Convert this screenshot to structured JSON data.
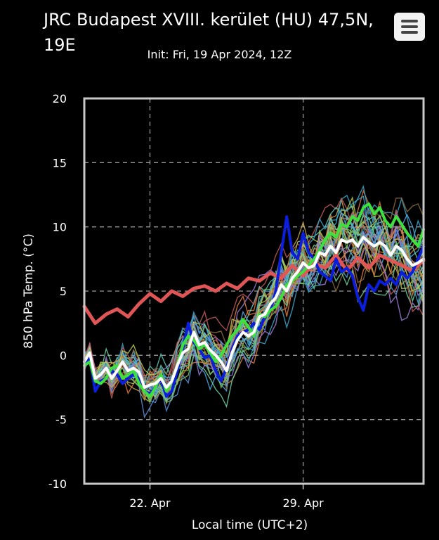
{
  "header": {
    "title": "JRC Budapest XVIII. kerület (HU) 47,5N, 19E",
    "subtitle": "Init: Fri, 19 Apr 2024, 12Z"
  },
  "chart_data": {
    "type": "line",
    "ylabel": "850 hPa Temp. (°C)",
    "xlabel": "Local time (UTC+2)",
    "ylim": [
      -10,
      20
    ],
    "yticks": [
      20,
      15,
      10,
      5,
      0,
      -5,
      -10
    ],
    "xticks": [
      {
        "day": 3,
        "label": "22. Apr"
      },
      {
        "day": 10,
        "label": "29. Apr"
      }
    ],
    "xlim_days": [
      0,
      15.5
    ],
    "grid": true,
    "legend": "none",
    "colors": {
      "background": "#000000",
      "plot_border": "#c8c8c8",
      "grid": "#9a9a9a",
      "mean": "#ffffff",
      "control": "#3ee03e",
      "deterministic": "#0a1edc",
      "climate": "#e05555"
    },
    "series": [
      {
        "role": "ensemble-mean",
        "color": "#ffffff",
        "width": 4,
        "x": [
          0,
          0.25,
          0.5,
          0.75,
          1,
          1.25,
          1.5,
          1.75,
          2,
          2.25,
          2.5,
          2.75,
          3,
          3.25,
          3.5,
          3.75,
          4,
          4.25,
          4.5,
          4.75,
          5,
          5.25,
          5.5,
          5.75,
          6,
          6.25,
          6.5,
          6.75,
          7,
          7.25,
          7.5,
          7.75,
          8,
          8.25,
          8.5,
          8.75,
          9,
          9.25,
          9.5,
          9.75,
          10,
          10.25,
          10.5,
          10.75,
          11,
          11.25,
          11.5,
          11.75,
          12,
          12.25,
          12.5,
          12.75,
          13,
          13.25,
          13.5,
          13.75,
          14,
          14.25,
          14.5,
          14.75,
          15,
          15.25,
          15.5
        ],
        "y": [
          -0.5,
          0.2,
          -1.8,
          -1.5,
          -1.0,
          -1.8,
          -1.2,
          -0.5,
          -1.2,
          -1.0,
          -1.3,
          -2.5,
          -2.3,
          -2.2,
          -1.8,
          -2.5,
          -2.0,
          -0.8,
          0.2,
          0.5,
          1.8,
          0.8,
          1.0,
          0.4,
          0,
          -0.5,
          -1.2,
          0.2,
          1.2,
          1.8,
          1.5,
          1.8,
          3.0,
          3.2,
          4.0,
          4.5,
          5.5,
          5.0,
          6.0,
          6.5,
          7.2,
          6.8,
          7.0,
          8.0,
          7.8,
          8.5,
          8.0,
          9.0,
          8.8,
          9.0,
          8.5,
          9.2,
          8.8,
          8.5,
          8.8,
          8.5,
          7.8,
          8.5,
          8.2,
          7.5,
          7.0,
          7.2,
          7.5
        ]
      },
      {
        "role": "control",
        "color": "#3ee03e",
        "width": 4,
        "x": [
          0,
          0.25,
          0.5,
          0.75,
          1,
          1.25,
          1.5,
          1.75,
          2,
          2.25,
          2.5,
          2.75,
          3,
          3.25,
          3.5,
          3.75,
          4,
          4.25,
          4.5,
          4.75,
          5,
          5.25,
          5.5,
          5.75,
          6,
          6.25,
          6.5,
          6.75,
          7,
          7.25,
          7.5,
          7.75,
          8,
          8.25,
          8.5,
          8.75,
          9,
          9.25,
          9.5,
          9.75,
          10,
          10.25,
          10.5,
          10.75,
          11,
          11.25,
          11.5,
          11.75,
          12,
          12.25,
          12.5,
          12.75,
          13,
          13.25,
          13.5,
          13.75,
          14,
          14.25,
          14.5,
          14.75,
          15,
          15.25,
          15.5
        ],
        "y": [
          -0.8,
          -0.5,
          -2.0,
          -2.2,
          -1.8,
          -1.0,
          -0.8,
          -1.8,
          -1.5,
          -1.2,
          -2.2,
          -2.8,
          -3.2,
          -2.5,
          -1.5,
          -2.8,
          -2.0,
          -0.8,
          0.8,
          1.5,
          1.2,
          0.5,
          0.8,
          0.2,
          -0.5,
          0.0,
          0.8,
          1.5,
          2.0,
          2.8,
          2.2,
          1.5,
          3.2,
          3.0,
          3.5,
          3.8,
          4.5,
          5.5,
          5.8,
          6.2,
          6.5,
          7.0,
          7.5,
          8.2,
          9.0,
          9.5,
          9.2,
          10.2,
          10.0,
          10.8,
          10.5,
          11.5,
          11.8,
          11.0,
          11.5,
          10.5,
          10.0,
          10.8,
          10.2,
          9.5,
          9.0,
          8.5,
          9.8
        ]
      },
      {
        "role": "deterministic",
        "color": "#0a1edc",
        "width": 4,
        "x": [
          0,
          0.25,
          0.5,
          0.75,
          1,
          1.25,
          1.5,
          1.75,
          2,
          2.25,
          2.5,
          2.75,
          3,
          3.25,
          3.5,
          3.75,
          4,
          4.25,
          4.5,
          4.75,
          5,
          5.25,
          5.5,
          5.75,
          6,
          6.25,
          6.5,
          6.75,
          7,
          7.25,
          7.5,
          7.75,
          8,
          8.25,
          8.5,
          8.75,
          9,
          9.25,
          9.5,
          9.75,
          10,
          10.25,
          10.5,
          10.75,
          11,
          11.25,
          11.5,
          11.75,
          12,
          12.25,
          12.5,
          12.75,
          13,
          13.25,
          13.5,
          13.75,
          14,
          14.25,
          14.5,
          14.75,
          15,
          15.25,
          15.5
        ],
        "y": [
          -0.8,
          -0.2,
          -2.8,
          -2.0,
          -1.8,
          -1.2,
          -1.5,
          -2.2,
          -1.8,
          -1.5,
          -1.8,
          -2.8,
          -3.0,
          -2.5,
          -1.8,
          -3.2,
          -2.8,
          -1.2,
          0.5,
          2.5,
          1.0,
          0.5,
          -0.2,
          0.0,
          -1.2,
          -2.0,
          -1.0,
          0.5,
          1.5,
          1.8,
          2.0,
          2.5,
          2.0,
          3.0,
          3.5,
          5.0,
          8.0,
          10.8,
          8.0,
          7.5,
          9.5,
          8.0,
          7.5,
          6.5,
          6.2,
          5.8,
          7.5,
          6.5,
          6.8,
          6.2,
          4.5,
          3.5,
          5.5,
          5.0,
          5.8,
          5.5,
          6.0,
          5.5,
          6.5,
          6.0,
          6.5,
          7.5,
          8.5
        ]
      },
      {
        "role": "climate",
        "color": "#e05555",
        "width": 5,
        "x": [
          0,
          0.5,
          1,
          1.5,
          2,
          2.5,
          3,
          3.5,
          4,
          4.5,
          5,
          5.5,
          6,
          6.5,
          7,
          7.5,
          8,
          8.5,
          9,
          9.5,
          10,
          10.5,
          11,
          11.5,
          12,
          12.5,
          13,
          13.5,
          14,
          14.5,
          15,
          15.5
        ],
        "y": [
          3.8,
          2.5,
          3.2,
          3.6,
          3.0,
          4.0,
          4.8,
          4.2,
          5.0,
          4.6,
          5.2,
          5.4,
          5.0,
          5.6,
          5.2,
          6.0,
          5.8,
          6.4,
          6.0,
          7.0,
          6.2,
          7.2,
          6.8,
          7.8,
          6.6,
          7.6,
          6.8,
          7.8,
          7.4,
          7.0,
          6.6,
          7.4
        ]
      }
    ]
  }
}
